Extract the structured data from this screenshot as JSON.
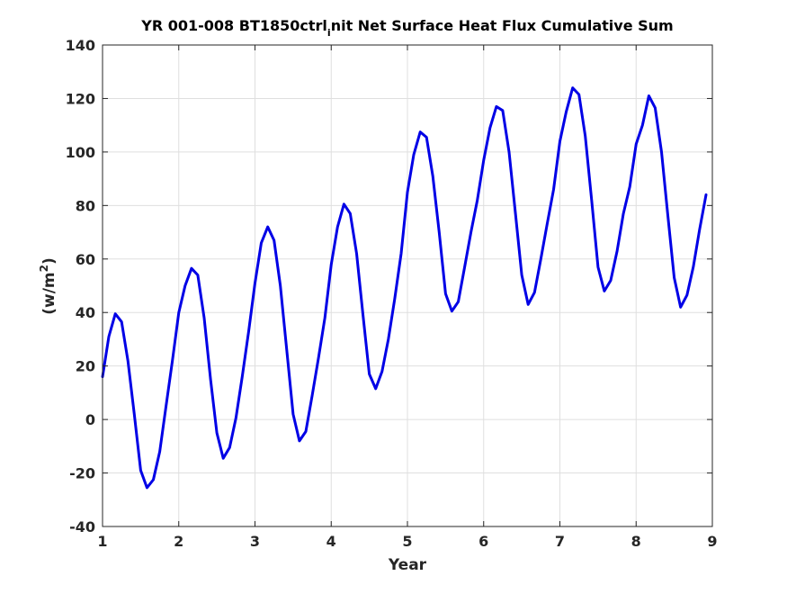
{
  "chart_data": {
    "type": "line",
    "title_parts": {
      "before": "YR 001-008 BT1850ctrl",
      "sub": "i",
      "after": "nit Net Surface Heat Flux  Cumulative Sum"
    },
    "xlabel": "Year",
    "ylabel_parts": {
      "before": "(w/m",
      "sup": "2",
      "after": ")"
    },
    "xlim": [
      1,
      9
    ],
    "ylim": [
      -40,
      140
    ],
    "xticks": [
      1,
      2,
      3,
      4,
      5,
      6,
      7,
      8,
      9
    ],
    "yticks": [
      -40,
      -20,
      0,
      20,
      40,
      60,
      80,
      100,
      120,
      140
    ],
    "x_tick_labels": [
      "1",
      "2",
      "3",
      "4",
      "5",
      "6",
      "7",
      "8",
      "9"
    ],
    "y_tick_labels": [
      "-40",
      "-20",
      "0",
      "20",
      "40",
      "60",
      "80",
      "100",
      "120",
      "140"
    ],
    "grid": true,
    "series": [
      {
        "color": "#0000e6",
        "x": [
          1.0,
          1.083,
          1.167,
          1.25,
          1.333,
          1.417,
          1.5,
          1.583,
          1.667,
          1.75,
          1.833,
          1.917,
          2.0,
          2.083,
          2.167,
          2.25,
          2.333,
          2.417,
          2.5,
          2.583,
          2.667,
          2.75,
          2.833,
          2.917,
          3.0,
          3.083,
          3.167,
          3.25,
          3.333,
          3.417,
          3.5,
          3.583,
          3.667,
          3.75,
          3.833,
          3.917,
          4.0,
          4.083,
          4.167,
          4.25,
          4.333,
          4.417,
          4.5,
          4.583,
          4.667,
          4.75,
          4.833,
          4.917,
          5.0,
          5.083,
          5.167,
          5.25,
          5.333,
          5.417,
          5.5,
          5.583,
          5.667,
          5.75,
          5.833,
          5.917,
          6.0,
          6.083,
          6.167,
          6.25,
          6.333,
          6.417,
          6.5,
          6.583,
          6.667,
          6.75,
          6.833,
          6.917,
          7.0,
          7.083,
          7.167,
          7.25,
          7.333,
          7.417,
          7.5,
          7.583,
          7.667,
          7.75,
          7.833,
          7.917,
          8.0,
          8.083,
          8.167,
          8.25,
          8.333,
          8.417,
          8.5,
          8.583,
          8.667,
          8.75,
          8.833,
          8.917
        ],
        "y": [
          16,
          31,
          39.5,
          36.5,
          22,
          2,
          -19,
          -25.5,
          -22.5,
          -12,
          5,
          22,
          40,
          50,
          56.5,
          54,
          38,
          15,
          -5,
          -14.5,
          -10.5,
          0.5,
          16,
          33,
          51,
          66,
          72,
          67,
          50,
          26,
          2,
          -8,
          -4.5,
          9,
          23,
          38,
          58,
          72,
          80.5,
          77,
          62,
          39,
          17,
          11.5,
          18,
          30,
          45,
          62,
          85,
          99,
          107.5,
          105.5,
          91,
          70,
          47,
          40.5,
          44,
          57,
          70,
          82,
          97,
          109,
          117,
          115.5,
          100,
          77,
          54,
          43,
          47.5,
          60,
          73,
          86,
          104,
          115,
          124,
          121.5,
          106,
          82,
          57,
          48,
          52,
          63,
          77,
          87,
          103,
          110,
          121,
          116.5,
          100,
          76,
          53,
          42,
          46.5,
          57,
          71,
          84
        ]
      }
    ]
  }
}
